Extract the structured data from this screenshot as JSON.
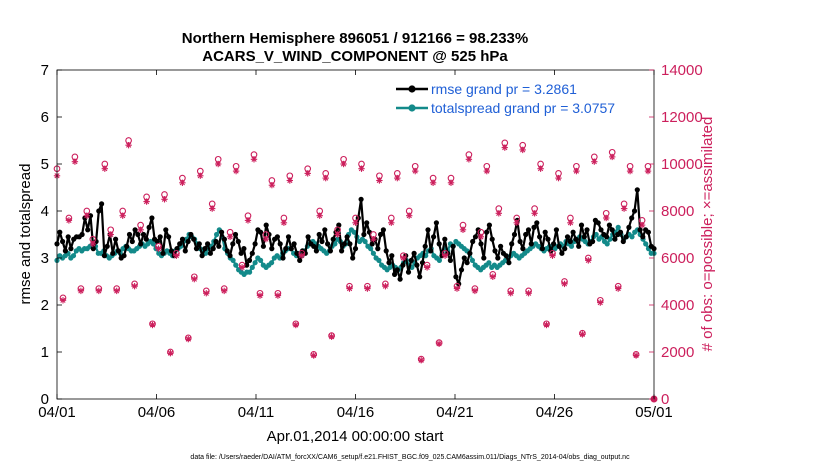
{
  "chart_data": {
    "type": "line",
    "title_line1": "Northern Hemisphere 896051 / 912166 = 98.233%",
    "title_line2": "ACARS_V_WIND_COMPONENT @ 525 hPa",
    "xlabel": "Apr.01,2014 00:00:00 start",
    "ylabel": "rmse and totalspread",
    "ylabel_right": "# of obs: o=possible; ×=assimilated",
    "footer": "data file: /Users/raeder/DAI/ATM_forcXX/CAM6_setup/f.e21.FHIST_BGC.f09_025.CAM6assim.011/Diags_NTrS_2014-04/obs_diag_output.nc",
    "xlim": [
      0,
      30
    ],
    "ylim": [
      0,
      7
    ],
    "ylim_right": [
      0,
      14000
    ],
    "x_ticks": [
      0,
      5,
      10,
      15,
      20,
      25,
      30
    ],
    "x_tick_labels": [
      "04/01",
      "04/06",
      "04/11",
      "04/16",
      "04/21",
      "04/26",
      "05/01"
    ],
    "y_ticks": [
      0,
      1,
      2,
      3,
      4,
      5,
      6,
      7
    ],
    "y_tick_labels": [
      "0",
      "1",
      "2",
      "3",
      "4",
      "5",
      "6",
      "7"
    ],
    "y_right_ticks": [
      0,
      2000,
      4000,
      6000,
      8000,
      10000,
      12000,
      14000
    ],
    "y_right_tick_labels": [
      "0",
      "2000",
      "4000",
      "6000",
      "8000",
      "10000",
      "12000",
      "14000"
    ],
    "legend_position": "top-right",
    "colors": {
      "rmse": "#000000",
      "totalspread": "#138a8a",
      "obs": "#cc1f5c",
      "legend_text": "#1f5fd6"
    },
    "series": [
      {
        "name": "rmse grand pr = 3.2861",
        "values": [
          3.3,
          3.55,
          3.35,
          3.15,
          3.45,
          3.2,
          3.4,
          3.45,
          3.45,
          3.5,
          3.85,
          3.6,
          3.9,
          3.2,
          3.35,
          4.0,
          4.15,
          3.05,
          3.25,
          3.5,
          3.1,
          3.4,
          3.15,
          3.0,
          3.05,
          3.25,
          3.5,
          3.35,
          3.6,
          3.5,
          3.3,
          3.5,
          3.4,
          3.65,
          3.85,
          3.4,
          3.35,
          3.45,
          3.1,
          3.6,
          3.45,
          3.15,
          3.05,
          3.2,
          3.3,
          3.4,
          3.15,
          3.35,
          3.5,
          3.4,
          3.2,
          3.3,
          3.05,
          3.2,
          3.3,
          3.1,
          3.2,
          3.35,
          3.25,
          3.55,
          3.4,
          3.15,
          3.05,
          3.3,
          3.5,
          3.35,
          3.1,
          3.2,
          2.85,
          2.95,
          3.1,
          3.3,
          3.6,
          3.55,
          3.25,
          3.7,
          3.5,
          3.2,
          3.4,
          3.45,
          3.3,
          3.0,
          3.2,
          3.45,
          3.2,
          3.3,
          3.1,
          2.95,
          3.15,
          3.1,
          3.45,
          3.3,
          3.25,
          3.15,
          3.5,
          3.35,
          3.6,
          3.3,
          3.15,
          3.4,
          3.55,
          3.7,
          3.15,
          3.3,
          3.45,
          3.3,
          3.0,
          3.2,
          3.85,
          4.25,
          3.5,
          3.75,
          3.55,
          3.3,
          3.4,
          3.2,
          3.5,
          3.6,
          3.15,
          2.9,
          3.05,
          2.65,
          2.75,
          2.55,
          2.85,
          3.05,
          2.7,
          2.95,
          3.1,
          2.85,
          2.6,
          2.9,
          3.25,
          3.6,
          3.15,
          3.45,
          3.75,
          3.3,
          3.05,
          3.4,
          3.1,
          2.95,
          3.25,
          2.6,
          2.45,
          2.75,
          3.0,
          2.9,
          3.1,
          3.35,
          3.45,
          3.6,
          3.3,
          3.0,
          3.55,
          3.7,
          3.4,
          3.15,
          3.0,
          3.25,
          3.1,
          3.05,
          2.9,
          3.3,
          3.5,
          3.8,
          3.35,
          3.2,
          3.5,
          3.6,
          3.3,
          3.65,
          3.75,
          3.45,
          3.2,
          3.55,
          3.4,
          3.15,
          3.3,
          3.6,
          3.25,
          3.1,
          3.2,
          3.45,
          3.35,
          3.55,
          3.4,
          3.25,
          3.7,
          3.45,
          3.6,
          3.3,
          3.35,
          3.8,
          3.75,
          3.6,
          3.5,
          3.45,
          3.7,
          3.6,
          3.4,
          3.5,
          3.55,
          3.35,
          3.45,
          3.65,
          3.85,
          4.0,
          4.45,
          3.6,
          3.45,
          3.6,
          3.55,
          3.25,
          3.2
        ],
        "color": "#000000"
      },
      {
        "name": "totalspread grand pr = 3.0757",
        "values": [
          2.95,
          3.05,
          3.0,
          3.05,
          3.1,
          3.0,
          3.05,
          3.15,
          3.2,
          3.15,
          3.2,
          3.2,
          3.25,
          3.3,
          3.25,
          3.1,
          3.1,
          3.15,
          3.05,
          3.0,
          3.05,
          3.1,
          3.15,
          3.1,
          3.2,
          3.25,
          3.2,
          3.15,
          3.15,
          3.2,
          3.25,
          3.3,
          3.25,
          3.3,
          3.35,
          3.3,
          3.2,
          3.1,
          3.05,
          3.1,
          3.15,
          3.1,
          3.05,
          3.15,
          3.2,
          3.25,
          3.35,
          3.4,
          3.5,
          3.45,
          3.4,
          3.3,
          3.2,
          3.15,
          3.1,
          3.2,
          3.25,
          3.35,
          3.5,
          3.6,
          3.45,
          3.2,
          3.1,
          3.0,
          2.95,
          2.85,
          2.75,
          2.7,
          2.65,
          2.7,
          2.7,
          2.8,
          2.9,
          3.0,
          2.95,
          2.85,
          2.8,
          2.85,
          2.9,
          3.0,
          3.05,
          3.0,
          3.1,
          3.15,
          3.2,
          3.2,
          3.1,
          3.05,
          3.1,
          3.05,
          3.15,
          3.25,
          3.3,
          3.35,
          3.3,
          3.25,
          3.2,
          3.15,
          3.1,
          3.15,
          3.25,
          3.3,
          3.4,
          3.35,
          3.25,
          3.3,
          3.5,
          3.6,
          3.55,
          3.45,
          3.35,
          3.4,
          3.35,
          3.25,
          3.2,
          3.1,
          3.0,
          2.95,
          2.85,
          2.8,
          2.75,
          2.8,
          2.85,
          2.8,
          2.75,
          2.8,
          2.9,
          2.95,
          2.85,
          2.8,
          2.9,
          3.0,
          3.05,
          3.1,
          3.05,
          3.15,
          3.2,
          3.05,
          3.0,
          2.95,
          3.1,
          3.2,
          3.15,
          3.3,
          3.25,
          3.35,
          3.3,
          3.25,
          3.2,
          3.15,
          3.1,
          2.95,
          2.85,
          2.8,
          2.75,
          2.8,
          2.85,
          2.9,
          2.8,
          2.85,
          2.8,
          2.85,
          2.9,
          2.95,
          3.0,
          3.05,
          3.1,
          3.05,
          3.0,
          3.05,
          3.1,
          3.15,
          3.2,
          3.25,
          3.3,
          3.25,
          3.2,
          3.15,
          3.2,
          3.25,
          3.2,
          3.2,
          3.25,
          3.3,
          3.25,
          3.35,
          3.3,
          3.25,
          3.35,
          3.4,
          3.45,
          3.4,
          3.35,
          3.3,
          3.35,
          3.45,
          3.5,
          3.4,
          3.45,
          3.35,
          3.3,
          3.4,
          3.5,
          3.55,
          3.65,
          3.5,
          3.4,
          3.45,
          3.5,
          3.45,
          3.55,
          3.6,
          3.5,
          3.4,
          3.3,
          3.2,
          3.1,
          3.1
        ],
        "color": "#138a8a"
      },
      {
        "name": "obs possible",
        "marker": "o",
        "values": [
          9800,
          4300,
          7700,
          10300,
          4700,
          8000,
          6800,
          4700,
          10000,
          7200,
          4700,
          8000,
          11000,
          4900,
          7400,
          8600,
          3200,
          6500,
          8700,
          2000,
          6200,
          9400,
          2600,
          5200,
          9700,
          4600,
          8300,
          10200,
          4700,
          7100,
          9900,
          5700,
          7800,
          10400,
          4500,
          7000,
          9300,
          4500,
          7700,
          9500,
          3200,
          6200,
          9800,
          1900,
          8000,
          9600,
          2700,
          7200,
          10200,
          4800,
          7700,
          10000,
          4800,
          7000,
          9500,
          4900,
          7700,
          9600,
          6100,
          8000,
          9900,
          1700,
          5700,
          9400,
          2400,
          6200,
          9400,
          4800,
          7400,
          10400,
          4700,
          7100,
          9900,
          5300,
          8100,
          10900,
          4600,
          7700,
          10800,
          4600,
          8100,
          10000,
          3200,
          6200,
          9600,
          5000,
          7700,
          9900,
          2800,
          6000,
          10300,
          4200,
          7900,
          10500,
          4800,
          8300,
          9900,
          1900,
          7600,
          9900
        ],
        "color": "#cc1f5c"
      },
      {
        "name": "obs assimilated",
        "marker": "x",
        "values": [
          9500,
          4200,
          7600,
          10100,
          4600,
          7800,
          6600,
          4600,
          9800,
          7000,
          4600,
          7800,
          10800,
          4800,
          7200,
          8400,
          3150,
          6400,
          8500,
          1950,
          6100,
          9200,
          2550,
          5100,
          9500,
          4500,
          8100,
          10000,
          4600,
          6900,
          9700,
          5600,
          7600,
          10200,
          4400,
          6800,
          9100,
          4400,
          7500,
          9300,
          3150,
          6100,
          9600,
          1850,
          7800,
          9400,
          2650,
          7000,
          10000,
          4700,
          7500,
          9800,
          4700,
          6800,
          9300,
          4800,
          7500,
          9400,
          6000,
          7800,
          9700,
          1650,
          5600,
          9200,
          2350,
          6100,
          9200,
          4700,
          7200,
          10200,
          4600,
          6900,
          9700,
          5200,
          7900,
          10700,
          4500,
          7500,
          10600,
          4500,
          7900,
          9800,
          3150,
          6100,
          9400,
          4900,
          7500,
          9700,
          2750,
          5900,
          10100,
          4100,
          7700,
          10300,
          4700,
          8100,
          9700,
          1850,
          7400,
          9700
        ],
        "color": "#cc1f5c"
      }
    ],
    "obs_x_end": 29.7,
    "obs_end_point": {
      "x": 30,
      "y": 0
    }
  }
}
